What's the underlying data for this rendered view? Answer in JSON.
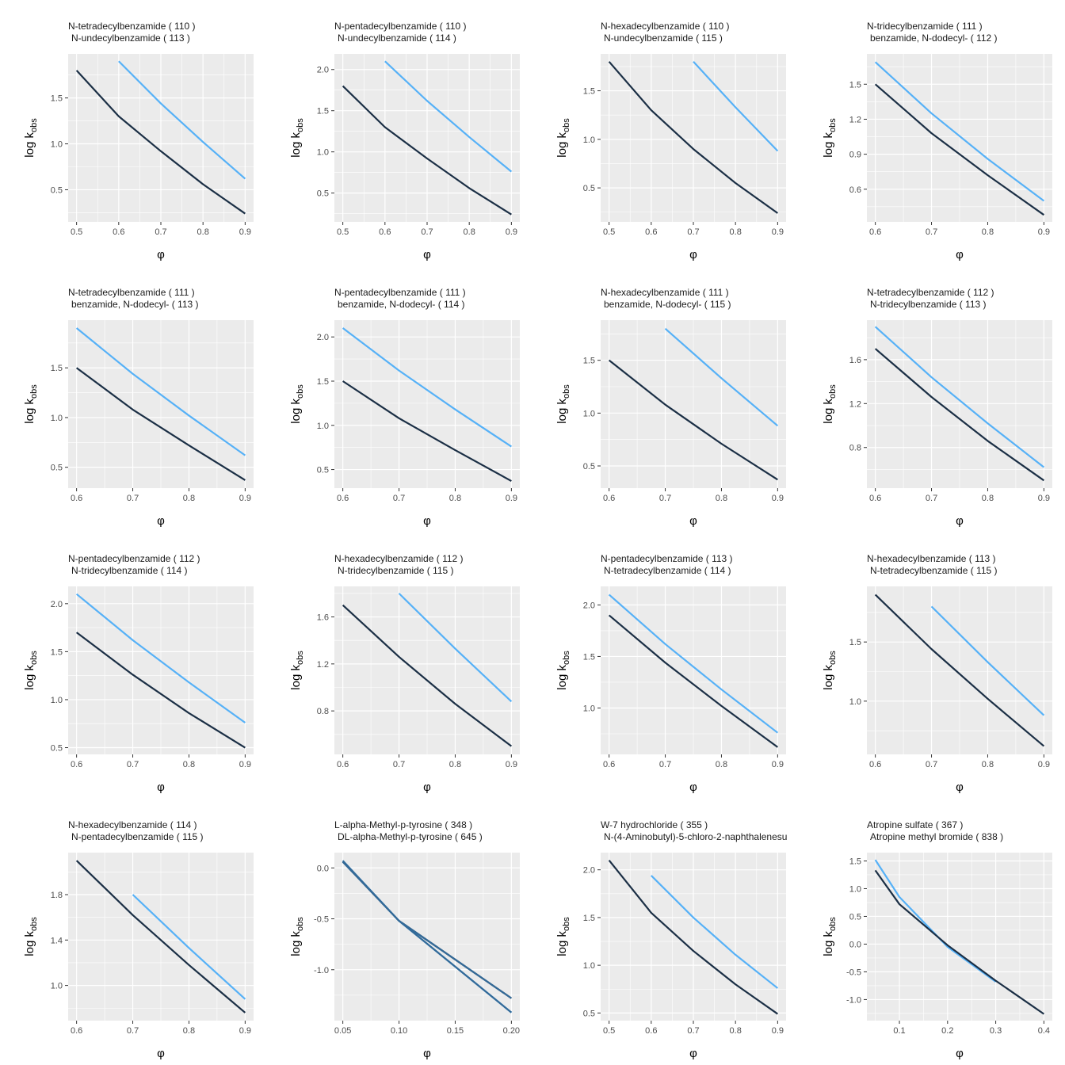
{
  "colors": {
    "panel_bg": "#EBEBEB",
    "grid_line": "#FFFFFF",
    "tick_mark": "#333333",
    "tick_label": "#4D4D4D",
    "series_dark": "#1B2F45",
    "series_light": "#56B1F7",
    "series_mid": "#336A98"
  },
  "axis_labels": {
    "x": "φ",
    "y_main": "log k",
    "y_sub": "obs"
  },
  "chart_data": [
    {
      "type": "line",
      "title": "N-tetradecylbenzamide ( 110 )",
      "subtitle": "N-undecylbenzamide ( 113 )",
      "xlabel": "φ",
      "ylabel": "log kobs",
      "xlim": [
        0.5,
        0.9
      ],
      "ylim": [
        0.15,
        1.98
      ],
      "xticks": [
        0.5,
        0.6,
        0.7,
        0.8,
        0.9
      ],
      "xtick_labels": [
        "0.5",
        "0.6",
        "0.7",
        "0.8",
        "0.9"
      ],
      "yticks": [
        0.5,
        1.0,
        1.5
      ],
      "ytick_labels": [
        "0.5",
        "1.0",
        "1.5"
      ],
      "series": [
        {
          "color": "dark",
          "x": [
            0.5,
            0.6,
            0.7,
            0.8,
            0.9
          ],
          "y": [
            1.8,
            1.3,
            0.92,
            0.56,
            0.24
          ]
        },
        {
          "color": "light",
          "x": [
            0.6,
            0.7,
            0.8,
            0.9
          ],
          "y": [
            1.9,
            1.44,
            1.02,
            0.62
          ]
        }
      ]
    },
    {
      "type": "line",
      "title": "N-pentadecylbenzamide ( 110 )",
      "subtitle": "N-undecylbenzamide ( 114 )",
      "xlabel": "φ",
      "ylabel": "log kobs",
      "xlim": [
        0.5,
        0.9
      ],
      "ylim": [
        0.15,
        2.19
      ],
      "xticks": [
        0.5,
        0.6,
        0.7,
        0.8,
        0.9
      ],
      "xtick_labels": [
        "0.5",
        "0.6",
        "0.7",
        "0.8",
        "0.9"
      ],
      "yticks": [
        0.5,
        1.0,
        1.5,
        2.0
      ],
      "ytick_labels": [
        "0.5",
        "1.0",
        "1.5",
        "2.0"
      ],
      "series": [
        {
          "color": "dark",
          "x": [
            0.5,
            0.6,
            0.7,
            0.8,
            0.9
          ],
          "y": [
            1.8,
            1.3,
            0.92,
            0.56,
            0.24
          ]
        },
        {
          "color": "light",
          "x": [
            0.6,
            0.7,
            0.8,
            0.9
          ],
          "y": [
            2.1,
            1.62,
            1.18,
            0.76
          ]
        }
      ]
    },
    {
      "type": "line",
      "title": "N-hexadecylbenzamide ( 110 )",
      "subtitle": "N-undecylbenzamide ( 115 )",
      "xlabel": "φ",
      "ylabel": "log kobs",
      "xlim": [
        0.5,
        0.9
      ],
      "ylim": [
        0.15,
        1.88
      ],
      "xticks": [
        0.5,
        0.6,
        0.7,
        0.8,
        0.9
      ],
      "xtick_labels": [
        "0.5",
        "0.6",
        "0.7",
        "0.8",
        "0.9"
      ],
      "yticks": [
        0.5,
        1.0,
        1.5
      ],
      "ytick_labels": [
        "0.5",
        "1.0",
        "1.5"
      ],
      "series": [
        {
          "color": "dark",
          "x": [
            0.5,
            0.6,
            0.7,
            0.8,
            0.9
          ],
          "y": [
            1.8,
            1.3,
            0.9,
            0.55,
            0.24
          ]
        },
        {
          "color": "light",
          "x": [
            0.7,
            0.8,
            0.9
          ],
          "y": [
            1.8,
            1.33,
            0.88
          ]
        }
      ]
    },
    {
      "type": "line",
      "title": "N-tridecylbenzamide ( 111 )",
      "subtitle": "benzamide, N-dodecyl- ( 112 )",
      "xlabel": "φ",
      "ylabel": "log kobs",
      "xlim": [
        0.6,
        0.9
      ],
      "ylim": [
        0.32,
        1.76
      ],
      "xticks": [
        0.6,
        0.7,
        0.8,
        0.9
      ],
      "xtick_labels": [
        "0.6",
        "0.7",
        "0.8",
        "0.9"
      ],
      "yticks": [
        0.6,
        0.9,
        1.2,
        1.5
      ],
      "ytick_labels": [
        "0.6",
        "0.9",
        "1.2",
        "1.5"
      ],
      "series": [
        {
          "color": "dark",
          "x": [
            0.6,
            0.7,
            0.8,
            0.9
          ],
          "y": [
            1.5,
            1.08,
            0.72,
            0.38
          ]
        },
        {
          "color": "light",
          "x": [
            0.6,
            0.7,
            0.8,
            0.9
          ],
          "y": [
            1.69,
            1.25,
            0.86,
            0.5
          ]
        }
      ]
    },
    {
      "type": "line",
      "title": "N-tetradecylbenzamide ( 111 )",
      "subtitle": "benzamide, N-dodecyl- ( 113 )",
      "xlabel": "φ",
      "ylabel": "log kobs",
      "xlim": [
        0.6,
        0.9
      ],
      "ylim": [
        0.29,
        1.98
      ],
      "xticks": [
        0.6,
        0.7,
        0.8,
        0.9
      ],
      "xtick_labels": [
        "0.6",
        "0.7",
        "0.8",
        "0.9"
      ],
      "yticks": [
        0.5,
        1.0,
        1.5
      ],
      "ytick_labels": [
        "0.5",
        "1.0",
        "1.5"
      ],
      "series": [
        {
          "color": "dark",
          "x": [
            0.6,
            0.7,
            0.8,
            0.9
          ],
          "y": [
            1.5,
            1.08,
            0.72,
            0.37
          ]
        },
        {
          "color": "light",
          "x": [
            0.6,
            0.7,
            0.8,
            0.9
          ],
          "y": [
            1.9,
            1.44,
            1.02,
            0.62
          ]
        }
      ]
    },
    {
      "type": "line",
      "title": "N-pentadecylbenzamide ( 111 )",
      "subtitle": "benzamide, N-dodecyl- ( 114 )",
      "xlabel": "φ",
      "ylabel": "log kobs",
      "xlim": [
        0.6,
        0.9
      ],
      "ylim": [
        0.29,
        2.19
      ],
      "xticks": [
        0.6,
        0.7,
        0.8,
        0.9
      ],
      "xtick_labels": [
        "0.6",
        "0.7",
        "0.8",
        "0.9"
      ],
      "yticks": [
        0.5,
        1.0,
        1.5,
        2.0
      ],
      "ytick_labels": [
        "0.5",
        "1.0",
        "1.5",
        "2.0"
      ],
      "series": [
        {
          "color": "dark",
          "x": [
            0.6,
            0.7,
            0.8,
            0.9
          ],
          "y": [
            1.5,
            1.08,
            0.72,
            0.37
          ]
        },
        {
          "color": "light",
          "x": [
            0.6,
            0.7,
            0.8,
            0.9
          ],
          "y": [
            2.1,
            1.62,
            1.18,
            0.76
          ]
        }
      ]
    },
    {
      "type": "line",
      "title": "N-hexadecylbenzamide ( 111 )",
      "subtitle": "benzamide, N-dodecyl- ( 115 )",
      "xlabel": "φ",
      "ylabel": "log kobs",
      "xlim": [
        0.6,
        0.9
      ],
      "ylim": [
        0.29,
        1.88
      ],
      "xticks": [
        0.6,
        0.7,
        0.8,
        0.9
      ],
      "xtick_labels": [
        "0.6",
        "0.7",
        "0.8",
        "0.9"
      ],
      "yticks": [
        0.5,
        1.0,
        1.5
      ],
      "ytick_labels": [
        "0.5",
        "1.0",
        "1.5"
      ],
      "series": [
        {
          "color": "dark",
          "x": [
            0.6,
            0.7,
            0.8,
            0.9
          ],
          "y": [
            1.5,
            1.08,
            0.71,
            0.37
          ]
        },
        {
          "color": "light",
          "x": [
            0.7,
            0.8,
            0.9
          ],
          "y": [
            1.8,
            1.33,
            0.88
          ]
        }
      ]
    },
    {
      "type": "line",
      "title": "N-tetradecylbenzamide ( 112 )",
      "subtitle": "N-tridecylbenzamide ( 113 )",
      "xlabel": "φ",
      "ylabel": "log kobs",
      "xlim": [
        0.6,
        0.9
      ],
      "ylim": [
        0.43,
        1.96
      ],
      "xticks": [
        0.6,
        0.7,
        0.8,
        0.9
      ],
      "xtick_labels": [
        "0.6",
        "0.7",
        "0.8",
        "0.9"
      ],
      "yticks": [
        0.8,
        1.2,
        1.6
      ],
      "ytick_labels": [
        "0.8",
        "1.2",
        "1.6"
      ],
      "series": [
        {
          "color": "dark",
          "x": [
            0.6,
            0.7,
            0.8,
            0.9
          ],
          "y": [
            1.7,
            1.26,
            0.86,
            0.5
          ]
        },
        {
          "color": "light",
          "x": [
            0.6,
            0.7,
            0.8,
            0.9
          ],
          "y": [
            1.9,
            1.44,
            1.02,
            0.62
          ]
        }
      ]
    },
    {
      "type": "line",
      "title": "N-pentadecylbenzamide ( 112 )",
      "subtitle": "N-tridecylbenzamide ( 114 )",
      "xlabel": "φ",
      "ylabel": "log kobs",
      "xlim": [
        0.6,
        0.9
      ],
      "ylim": [
        0.43,
        2.18
      ],
      "xticks": [
        0.6,
        0.7,
        0.8,
        0.9
      ],
      "xtick_labels": [
        "0.6",
        "0.7",
        "0.8",
        "0.9"
      ],
      "yticks": [
        0.5,
        1.0,
        1.5,
        2.0
      ],
      "ytick_labels": [
        "0.5",
        "1.0",
        "1.5",
        "2.0"
      ],
      "series": [
        {
          "color": "dark",
          "x": [
            0.6,
            0.7,
            0.8,
            0.9
          ],
          "y": [
            1.7,
            1.26,
            0.86,
            0.5
          ]
        },
        {
          "color": "light",
          "x": [
            0.6,
            0.7,
            0.8,
            0.9
          ],
          "y": [
            2.1,
            1.62,
            1.18,
            0.76
          ]
        }
      ]
    },
    {
      "type": "line",
      "title": "N-hexadecylbenzamide ( 112 )",
      "subtitle": "N-tridecylbenzamide ( 115 )",
      "xlabel": "φ",
      "ylabel": "log kobs",
      "xlim": [
        0.6,
        0.9
      ],
      "ylim": [
        0.43,
        1.86
      ],
      "xticks": [
        0.6,
        0.7,
        0.8,
        0.9
      ],
      "xtick_labels": [
        "0.6",
        "0.7",
        "0.8",
        "0.9"
      ],
      "yticks": [
        0.8,
        1.2,
        1.6
      ],
      "ytick_labels": [
        "0.8",
        "1.2",
        "1.6"
      ],
      "series": [
        {
          "color": "dark",
          "x": [
            0.6,
            0.7,
            0.8,
            0.9
          ],
          "y": [
            1.7,
            1.26,
            0.86,
            0.5
          ]
        },
        {
          "color": "light",
          "x": [
            0.7,
            0.8,
            0.9
          ],
          "y": [
            1.8,
            1.33,
            0.88
          ]
        }
      ]
    },
    {
      "type": "line",
      "title": "N-pentadecylbenzamide ( 113 )",
      "subtitle": "N-tetradecylbenzamide ( 114 )",
      "xlabel": "φ",
      "ylabel": "log kobs",
      "xlim": [
        0.6,
        0.9
      ],
      "ylim": [
        0.55,
        2.18
      ],
      "xticks": [
        0.6,
        0.7,
        0.8,
        0.9
      ],
      "xtick_labels": [
        "0.6",
        "0.7",
        "0.8",
        "0.9"
      ],
      "yticks": [
        1.0,
        1.5,
        2.0
      ],
      "ytick_labels": [
        "1.0",
        "1.5",
        "2.0"
      ],
      "series": [
        {
          "color": "dark",
          "x": [
            0.6,
            0.7,
            0.8,
            0.9
          ],
          "y": [
            1.9,
            1.44,
            1.02,
            0.62
          ]
        },
        {
          "color": "light",
          "x": [
            0.6,
            0.7,
            0.8,
            0.9
          ],
          "y": [
            2.1,
            1.62,
            1.18,
            0.76
          ]
        }
      ]
    },
    {
      "type": "line",
      "title": "N-hexadecylbenzamide ( 113 )",
      "subtitle": "N-tetradecylbenzamide ( 115 )",
      "xlabel": "φ",
      "ylabel": "log kobs",
      "xlim": [
        0.6,
        0.9
      ],
      "ylim": [
        0.55,
        1.97
      ],
      "xticks": [
        0.6,
        0.7,
        0.8,
        0.9
      ],
      "xtick_labels": [
        "0.6",
        "0.7",
        "0.8",
        "0.9"
      ],
      "yticks": [
        1.0,
        1.5
      ],
      "ytick_labels": [
        "1.0",
        "1.5"
      ],
      "series": [
        {
          "color": "dark",
          "x": [
            0.6,
            0.7,
            0.8,
            0.9
          ],
          "y": [
            1.9,
            1.44,
            1.02,
            0.62
          ]
        },
        {
          "color": "light",
          "x": [
            0.7,
            0.8,
            0.9
          ],
          "y": [
            1.8,
            1.33,
            0.88
          ]
        }
      ]
    },
    {
      "type": "line",
      "title": "N-hexadecylbenzamide ( 114 )",
      "subtitle": "N-pentadecylbenzamide ( 115 )",
      "xlabel": "φ",
      "ylabel": "log kobs",
      "xlim": [
        0.6,
        0.9
      ],
      "ylim": [
        0.69,
        2.17
      ],
      "xticks": [
        0.6,
        0.7,
        0.8,
        0.9
      ],
      "xtick_labels": [
        "0.6",
        "0.7",
        "0.8",
        "0.9"
      ],
      "yticks": [
        1.0,
        1.4,
        1.8
      ],
      "ytick_labels": [
        "1.0",
        "1.4",
        "1.8"
      ],
      "series": [
        {
          "color": "dark",
          "x": [
            0.6,
            0.7,
            0.8,
            0.9
          ],
          "y": [
            2.1,
            1.62,
            1.18,
            0.76
          ]
        },
        {
          "color": "light",
          "x": [
            0.7,
            0.8,
            0.9
          ],
          "y": [
            1.8,
            1.33,
            0.88
          ]
        }
      ]
    },
    {
      "type": "line",
      "title": "L-alpha-Methyl-p-tyrosine ( 348 )",
      "subtitle": "DL-alpha-Methyl-p-tyrosine ( 645 )",
      "xlabel": "φ",
      "ylabel": "log kobs",
      "xlim": [
        0.05,
        0.2
      ],
      "ylim": [
        -1.5,
        0.15
      ],
      "xticks": [
        0.05,
        0.1,
        0.15,
        0.2
      ],
      "xtick_labels": [
        "0.05",
        "0.10",
        "0.15",
        "0.20"
      ],
      "yticks": [
        -1.0,
        -0.5,
        0.0
      ],
      "ytick_labels": [
        "-1.0",
        "-0.5",
        "0.0"
      ],
      "series": [
        {
          "color": "dark",
          "x": [
            0.05,
            0.1,
            0.2
          ],
          "y": [
            0.06,
            -0.52,
            -1.28
          ]
        },
        {
          "color": "light",
          "x": [
            0.05,
            0.1,
            0.2
          ],
          "y": [
            0.07,
            -0.52,
            -1.42
          ]
        },
        {
          "color": "mid",
          "x": [
            0.05,
            0.1,
            0.2
          ],
          "y": [
            0.07,
            -0.52,
            -1.42
          ]
        },
        {
          "color": "mid",
          "x": [
            0.05,
            0.1,
            0.2
          ],
          "y": [
            0.06,
            -0.52,
            -1.28
          ]
        }
      ]
    },
    {
      "type": "line",
      "title": "W-7 hydrochloride ( 355 )",
      "subtitle": "N-(4-Aminobutyl)-5-chloro-2-naphthalenesu",
      "xlabel": "φ",
      "ylabel": "log kobs",
      "xlim": [
        0.5,
        0.9
      ],
      "ylim": [
        0.42,
        2.18
      ],
      "xticks": [
        0.5,
        0.6,
        0.7,
        0.8,
        0.9
      ],
      "xtick_labels": [
        "0.5",
        "0.6",
        "0.7",
        "0.8",
        "0.9"
      ],
      "yticks": [
        0.5,
        1.0,
        1.5,
        2.0
      ],
      "ytick_labels": [
        "0.5",
        "1.0",
        "1.5",
        "2.0"
      ],
      "series": [
        {
          "color": "dark",
          "x": [
            0.5,
            0.6,
            0.7,
            0.8,
            0.9
          ],
          "y": [
            2.1,
            1.55,
            1.15,
            0.8,
            0.49
          ]
        },
        {
          "color": "light",
          "x": [
            0.6,
            0.7,
            0.8,
            0.9
          ],
          "y": [
            1.94,
            1.5,
            1.11,
            0.76
          ]
        }
      ]
    },
    {
      "type": "line",
      "title": "Atropine sulfate ( 367 )",
      "subtitle": "Atropine methyl bromide ( 838 )",
      "xlabel": "φ",
      "ylabel": "log kobs",
      "xlim": [
        0.05,
        0.4
      ],
      "ylim": [
        -1.38,
        1.65
      ],
      "xticks": [
        0.1,
        0.2,
        0.3,
        0.4
      ],
      "xtick_labels": [
        "0.1",
        "0.2",
        "0.3",
        "0.4"
      ],
      "yticks": [
        -1.0,
        -0.5,
        0.0,
        0.5,
        1.0,
        1.5
      ],
      "ytick_labels": [
        "-1.0",
        "-0.5",
        "0.0",
        "0.5",
        "1.0",
        "1.5"
      ],
      "series": [
        {
          "color": "light",
          "x": [
            0.05,
            0.1,
            0.2,
            0.3
          ],
          "y": [
            1.52,
            0.85,
            -0.05,
            -0.68
          ]
        },
        {
          "color": "dark",
          "x": [
            0.05,
            0.1,
            0.2,
            0.3,
            0.4
          ],
          "y": [
            1.33,
            0.72,
            -0.02,
            -0.66,
            -1.26
          ]
        }
      ]
    }
  ]
}
